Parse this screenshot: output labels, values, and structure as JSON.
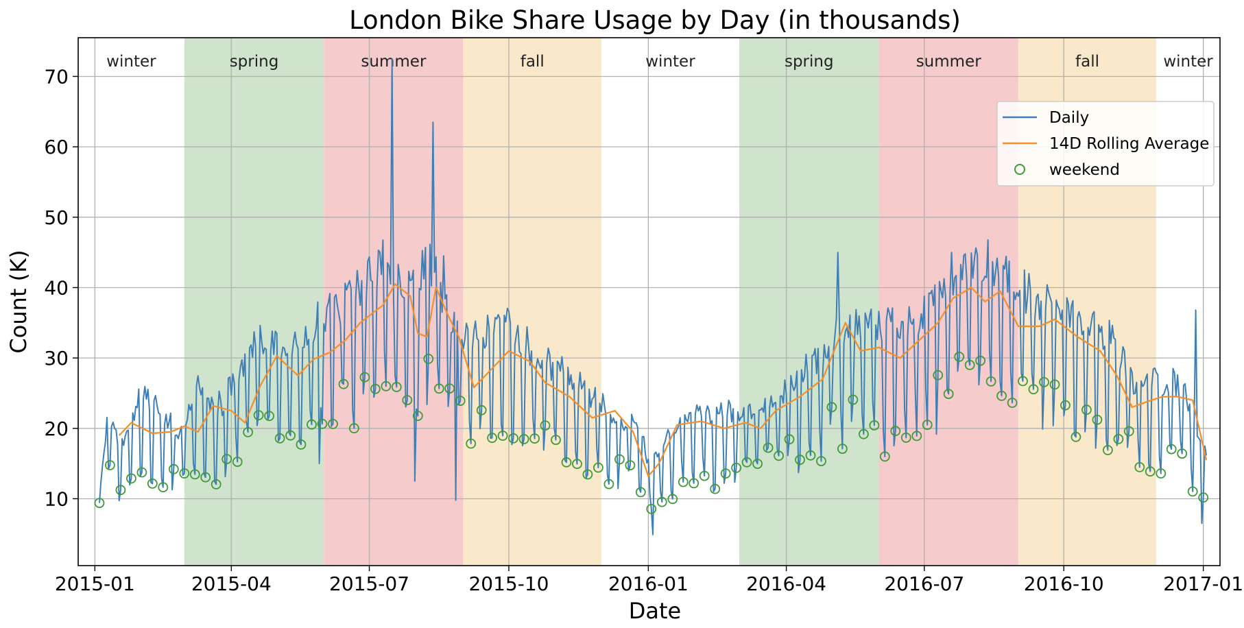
{
  "chart_data": {
    "type": "line",
    "title": "London Bike Share Usage by Day (in thousands)",
    "xlabel": "Date",
    "ylabel": "Count (K)",
    "xlim": [
      "2014-12-21",
      "2017-01-12"
    ],
    "ylim": [
      0.5,
      75.5
    ],
    "grid": true,
    "x_ticks": [
      {
        "date": "2015-01-01",
        "label": "2015-01"
      },
      {
        "date": "2015-04-01",
        "label": "2015-04"
      },
      {
        "date": "2015-07-01",
        "label": "2015-07"
      },
      {
        "date": "2015-10-01",
        "label": "2015-10"
      },
      {
        "date": "2016-01-01",
        "label": "2016-01"
      },
      {
        "date": "2016-04-01",
        "label": "2016-04"
      },
      {
        "date": "2016-07-01",
        "label": "2016-07"
      },
      {
        "date": "2016-10-01",
        "label": "2016-10"
      },
      {
        "date": "2017-01-01",
        "label": "2017-01"
      }
    ],
    "y_ticks": [
      10,
      20,
      30,
      40,
      50,
      60,
      70
    ],
    "seasons": [
      {
        "label": "winter",
        "start": "2014-12-21",
        "end": "2015-03-01",
        "color": "#ffffff"
      },
      {
        "label": "spring",
        "start": "2015-03-01",
        "end": "2015-06-01",
        "color": "#d0e3cd"
      },
      {
        "label": "summer",
        "start": "2015-06-01",
        "end": "2015-09-01",
        "color": "#f6cbcc"
      },
      {
        "label": "fall",
        "start": "2015-09-01",
        "end": "2015-12-01",
        "color": "#f9e9ca"
      },
      {
        "label": "winter",
        "start": "2015-12-01",
        "end": "2016-03-01",
        "color": "#ffffff"
      },
      {
        "label": "spring",
        "start": "2016-03-01",
        "end": "2016-06-01",
        "color": "#d0e3cd"
      },
      {
        "label": "summer",
        "start": "2016-06-01",
        "end": "2016-09-01",
        "color": "#f6cbcc"
      },
      {
        "label": "fall",
        "start": "2016-09-01",
        "end": "2016-12-01",
        "color": "#f9e9ca"
      },
      {
        "label": "winter",
        "start": "2016-12-01",
        "end": "2017-01-12",
        "color": "#ffffff"
      }
    ],
    "legend": {
      "position": "upper-right",
      "entries": [
        "Daily",
        "14D Rolling Average",
        "weekend"
      ]
    },
    "series": [
      {
        "name": "Daily",
        "color": "#3f7fb5",
        "start_date": "2015-01-04",
        "end_date": "2017-01-03",
        "anchors": [
          [
            "2015-01-04",
            9.4
          ],
          [
            "2015-01-10",
            20.5
          ],
          [
            "2015-01-20",
            15
          ],
          [
            "2015-02-01",
            24
          ],
          [
            "2015-02-12",
            20
          ],
          [
            "2015-02-25",
            18
          ],
          [
            "2015-03-10",
            23
          ],
          [
            "2015-03-25",
            21
          ],
          [
            "2015-04-05",
            25
          ],
          [
            "2015-04-20",
            30
          ],
          [
            "2015-05-05",
            29
          ],
          [
            "2015-05-20",
            30
          ],
          [
            "2015-06-01",
            33
          ],
          [
            "2015-06-15",
            34
          ],
          [
            "2015-06-30",
            37
          ],
          [
            "2015-07-10",
            39
          ],
          [
            "2015-07-25",
            35
          ],
          [
            "2015-08-10",
            39
          ],
          [
            "2015-08-20",
            34
          ],
          [
            "2015-09-01",
            30
          ],
          [
            "2015-09-15",
            30
          ],
          [
            "2015-10-01",
            32
          ],
          [
            "2015-10-20",
            27
          ],
          [
            "2015-11-10",
            25
          ],
          [
            "2015-11-25",
            22
          ],
          [
            "2015-12-10",
            20
          ],
          [
            "2015-12-25",
            18
          ],
          [
            "2016-01-01",
            14
          ],
          [
            "2016-01-12",
            16
          ],
          [
            "2016-01-25",
            20
          ],
          [
            "2016-02-10",
            20
          ],
          [
            "2016-02-25",
            20
          ],
          [
            "2016-03-10",
            21
          ],
          [
            "2016-03-25",
            22
          ],
          [
            "2016-04-10",
            25
          ],
          [
            "2016-04-25",
            27
          ],
          [
            "2016-05-08",
            31
          ],
          [
            "2016-05-20",
            32
          ],
          [
            "2016-06-05",
            31
          ],
          [
            "2016-06-20",
            32
          ],
          [
            "2016-07-05",
            33
          ],
          [
            "2016-07-20",
            38
          ],
          [
            "2016-08-05",
            40
          ],
          [
            "2016-08-20",
            39
          ],
          [
            "2016-09-01",
            36
          ],
          [
            "2016-09-15",
            34
          ],
          [
            "2016-10-01",
            34
          ],
          [
            "2016-10-15",
            32
          ],
          [
            "2016-11-01",
            30
          ],
          [
            "2016-11-15",
            24
          ],
          [
            "2016-12-01",
            24
          ],
          [
            "2016-12-15",
            24
          ],
          [
            "2016-12-25",
            20
          ],
          [
            "2017-01-03",
            15
          ]
        ],
        "peaks": [
          [
            "2015-07-16",
            72.5
          ],
          [
            "2015-08-12",
            63.5
          ],
          [
            "2015-07-31",
            12.5
          ],
          [
            "2015-08-27",
            9.8
          ],
          [
            "2016-05-05",
            45
          ],
          [
            "2016-12-27",
            36.8
          ],
          [
            "2016-01-04",
            4.9
          ],
          [
            "2016-12-31",
            6.5
          ],
          [
            "2015-05-29",
            15
          ],
          [
            "2016-06-05",
            16
          ],
          [
            "2015-07-15",
            40.5
          ],
          [
            "2015-08-19",
            44.5
          ]
        ]
      },
      {
        "name": "14D Rolling Average",
        "color": "#f28e2b",
        "points": [
          [
            "2015-01-17",
            19
          ],
          [
            "2015-01-25",
            20.8
          ],
          [
            "2015-02-08",
            19.3
          ],
          [
            "2015-02-20",
            19.5
          ],
          [
            "2015-03-01",
            20.3
          ],
          [
            "2015-03-10",
            19.5
          ],
          [
            "2015-03-20",
            23.2
          ],
          [
            "2015-04-01",
            22.5
          ],
          [
            "2015-04-10",
            20.8
          ],
          [
            "2015-04-20",
            26
          ],
          [
            "2015-05-01",
            30.3
          ],
          [
            "2015-05-15",
            27.5
          ],
          [
            "2015-05-25",
            29.8
          ],
          [
            "2015-06-05",
            30.8
          ],
          [
            "2015-06-15",
            32.5
          ],
          [
            "2015-06-25",
            35
          ],
          [
            "2015-07-10",
            37.5
          ],
          [
            "2015-07-18",
            40.5
          ],
          [
            "2015-07-28",
            38.8
          ],
          [
            "2015-08-02",
            33.5
          ],
          [
            "2015-08-08",
            33
          ],
          [
            "2015-08-14",
            40
          ],
          [
            "2015-08-22",
            36
          ],
          [
            "2015-08-29",
            33
          ],
          [
            "2015-09-08",
            25.8
          ],
          [
            "2015-09-20",
            28.5
          ],
          [
            "2015-10-01",
            31
          ],
          [
            "2015-10-15",
            29.5
          ],
          [
            "2015-10-25",
            26.5
          ],
          [
            "2015-11-10",
            24.5
          ],
          [
            "2015-11-25",
            21.5
          ],
          [
            "2015-12-10",
            22.5
          ],
          [
            "2015-12-22",
            19.5
          ],
          [
            "2016-01-01",
            13.2
          ],
          [
            "2016-01-08",
            15
          ],
          [
            "2016-01-20",
            20.5
          ],
          [
            "2016-02-05",
            21
          ],
          [
            "2016-02-20",
            20
          ],
          [
            "2016-03-05",
            20.8
          ],
          [
            "2016-03-15",
            20
          ],
          [
            "2016-03-25",
            22.5
          ],
          [
            "2016-04-10",
            24.5
          ],
          [
            "2016-04-25",
            27
          ],
          [
            "2016-05-10",
            35
          ],
          [
            "2016-05-20",
            31
          ],
          [
            "2016-06-01",
            31.5
          ],
          [
            "2016-06-15",
            30
          ],
          [
            "2016-06-25",
            32
          ],
          [
            "2016-07-10",
            35
          ],
          [
            "2016-07-20",
            38.5
          ],
          [
            "2016-08-01",
            40
          ],
          [
            "2016-08-10",
            38
          ],
          [
            "2016-08-20",
            39.5
          ],
          [
            "2016-09-01",
            34.5
          ],
          [
            "2016-09-15",
            34.5
          ],
          [
            "2016-09-25",
            35.5
          ],
          [
            "2016-10-10",
            33
          ],
          [
            "2016-10-25",
            31
          ],
          [
            "2016-11-05",
            27.5
          ],
          [
            "2016-11-15",
            23
          ],
          [
            "2016-11-25",
            23.8
          ],
          [
            "2016-12-05",
            24.5
          ],
          [
            "2016-12-15",
            24.5
          ],
          [
            "2016-12-25",
            24
          ],
          [
            "2017-01-03",
            15.5
          ]
        ]
      },
      {
        "name": "weekend",
        "color": "#3c9a38",
        "marker": "hollow-circle",
        "note": "weekend markers sit on Saturdays/Sundays of the Daily series, typically at the low troughs"
      }
    ]
  }
}
